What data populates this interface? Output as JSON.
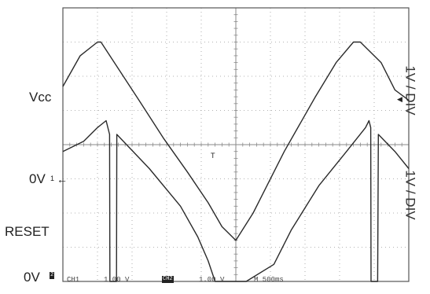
{
  "chart_data": {
    "type": "line",
    "title": "",
    "x_divisions": 10,
    "y_divisions": 8,
    "grid": true,
    "series": [
      {
        "name": "Vcc",
        "scale": "1V / DIV",
        "points": [
          [
            0.0,
            5.7
          ],
          [
            0.5,
            6.6
          ],
          [
            1.0,
            7.0
          ],
          [
            1.1,
            7.0
          ],
          [
            2.2,
            5.3
          ],
          [
            2.9,
            4.2
          ],
          [
            3.6,
            3.2
          ],
          [
            4.2,
            2.3
          ],
          [
            4.6,
            1.6
          ],
          [
            5.0,
            1.2
          ],
          [
            5.5,
            2.0
          ],
          [
            6.4,
            3.8
          ],
          [
            7.3,
            5.4
          ],
          [
            7.9,
            6.4
          ],
          [
            8.4,
            7.0
          ],
          [
            8.6,
            7.0
          ],
          [
            9.2,
            6.4
          ],
          [
            9.6,
            5.6
          ],
          [
            10.0,
            5.3
          ]
        ]
      },
      {
        "name": "RESET",
        "scale": "1V / DIV",
        "points": [
          [
            0.0,
            3.8
          ],
          [
            0.6,
            4.1
          ],
          [
            1.0,
            4.5
          ],
          [
            1.25,
            4.7
          ],
          [
            1.35,
            4.3
          ],
          [
            1.36,
            0.0
          ],
          [
            1.55,
            0.0
          ],
          [
            1.56,
            4.3
          ],
          [
            2.5,
            3.3
          ],
          [
            3.4,
            2.2
          ],
          [
            3.9,
            1.3
          ],
          [
            4.2,
            0.6
          ],
          [
            4.4,
            0.0
          ],
          [
            5.3,
            0.0
          ],
          [
            6.1,
            0.5
          ],
          [
            6.6,
            1.5
          ],
          [
            7.4,
            2.8
          ],
          [
            8.2,
            3.8
          ],
          [
            8.75,
            4.5
          ],
          [
            8.85,
            4.7
          ],
          [
            8.9,
            4.5
          ],
          [
            8.91,
            0.0
          ],
          [
            9.1,
            0.0
          ],
          [
            9.12,
            4.3
          ],
          [
            9.6,
            3.8
          ],
          [
            10.0,
            3.3
          ]
        ]
      }
    ]
  },
  "labels": {
    "vcc": "Vcc",
    "zero_top": "0V",
    "reset": "RESET",
    "zero_bottom": "0V",
    "scale_top": "1V / DIV",
    "scale_bottom": "1V / DIV"
  },
  "status_bar": {
    "ch1": "CH1",
    "ch1_scale": "1.00 V",
    "ch2_box": "CH2",
    "ch2_scale": "1.00 V",
    "time": "M 500ms"
  },
  "markers": {
    "ch1_ground": "1",
    "ch2_ground": "2",
    "trigger": "T"
  }
}
